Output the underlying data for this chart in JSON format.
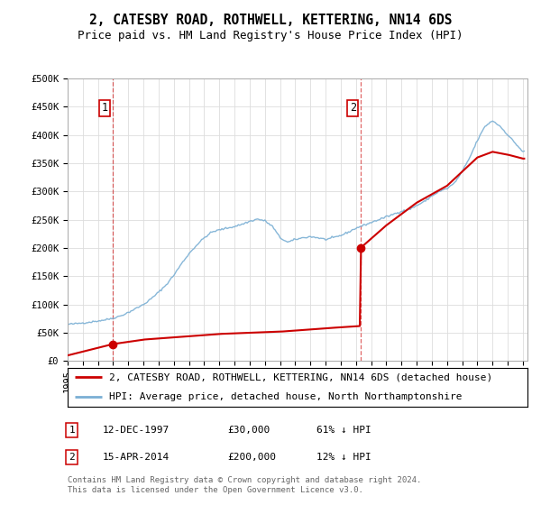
{
  "title": "2, CATESBY ROAD, ROTHWELL, KETTERING, NN14 6DS",
  "subtitle": "Price paid vs. HM Land Registry's House Price Index (HPI)",
  "ylabel_ticks": [
    "£0",
    "£50K",
    "£100K",
    "£150K",
    "£200K",
    "£250K",
    "£300K",
    "£350K",
    "£400K",
    "£450K",
    "£500K"
  ],
  "ytick_values": [
    0,
    50000,
    100000,
    150000,
    200000,
    250000,
    300000,
    350000,
    400000,
    450000,
    500000
  ],
  "ylim": [
    0,
    500000
  ],
  "legend_label_red": "2, CATESBY ROAD, ROTHWELL, KETTERING, NN14 6DS (detached house)",
  "legend_label_blue": "HPI: Average price, detached house, North Northamptonshire",
  "sale1_label": "1",
  "sale1_date": "12-DEC-1997",
  "sale1_price": "£30,000",
  "sale1_hpi": "61% ↓ HPI",
  "sale1_year": 1997.95,
  "sale1_value": 30000,
  "sale2_label": "2",
  "sale2_date": "15-APR-2014",
  "sale2_price": "£200,000",
  "sale2_hpi": "12% ↓ HPI",
  "sale2_year": 2014.29,
  "sale2_value": 200000,
  "red_color": "#cc0000",
  "blue_color": "#7aafd4",
  "dashed_color": "#cc0000",
  "background_color": "#ffffff",
  "grid_color": "#dddddd",
  "title_fontsize": 10.5,
  "subtitle_fontsize": 9,
  "tick_fontsize": 7.5,
  "legend_fontsize": 8,
  "annotation_fontsize": 8,
  "footer_fontsize": 6.5,
  "footer_text": "Contains HM Land Registry data © Crown copyright and database right 2024.\nThis data is licensed under the Open Government Licence v3.0.",
  "hpi_years": [
    1995.0,
    1995.5,
    1996.0,
    1996.5,
    1997.0,
    1997.5,
    1998.0,
    1998.5,
    1999.0,
    1999.5,
    2000.0,
    2000.5,
    2001.0,
    2001.5,
    2002.0,
    2002.5,
    2003.0,
    2003.5,
    2004.0,
    2004.5,
    2005.0,
    2005.5,
    2006.0,
    2006.5,
    2007.0,
    2007.5,
    2008.0,
    2008.5,
    2009.0,
    2009.5,
    2010.0,
    2010.5,
    2011.0,
    2011.5,
    2012.0,
    2012.5,
    2013.0,
    2013.5,
    2014.0,
    2014.5,
    2015.0,
    2015.5,
    2016.0,
    2016.5,
    2017.0,
    2017.5,
    2018.0,
    2018.5,
    2019.0,
    2019.5,
    2020.0,
    2020.5,
    2021.0,
    2021.5,
    2022.0,
    2022.5,
    2023.0,
    2023.5,
    2024.0,
    2024.5,
    2025.0
  ],
  "hpi_values": [
    65000,
    66000,
    67500,
    69000,
    71000,
    73000,
    76000,
    80000,
    86000,
    93000,
    100000,
    110000,
    122000,
    135000,
    152000,
    172000,
    190000,
    205000,
    218000,
    228000,
    232000,
    235000,
    238000,
    242000,
    247000,
    251000,
    248000,
    238000,
    218000,
    210000,
    215000,
    218000,
    220000,
    218000,
    215000,
    218000,
    222000,
    228000,
    235000,
    240000,
    245000,
    250000,
    255000,
    260000,
    265000,
    268000,
    275000,
    282000,
    292000,
    300000,
    305000,
    315000,
    335000,
    360000,
    390000,
    415000,
    425000,
    415000,
    400000,
    385000,
    370000
  ],
  "red_years": [
    1995.0,
    1997.95,
    1997.96,
    2000.0,
    2005.0,
    2009.0,
    2012.0,
    2014.28,
    2014.29,
    2014.3,
    2016.0,
    2018.0,
    2020.0,
    2022.0,
    2023.0,
    2024.0,
    2025.0
  ],
  "red_values": [
    10000,
    30000,
    30000,
    38000,
    48000,
    52000,
    58000,
    62000,
    62000,
    200000,
    240000,
    280000,
    310000,
    360000,
    370000,
    365000,
    358000
  ]
}
